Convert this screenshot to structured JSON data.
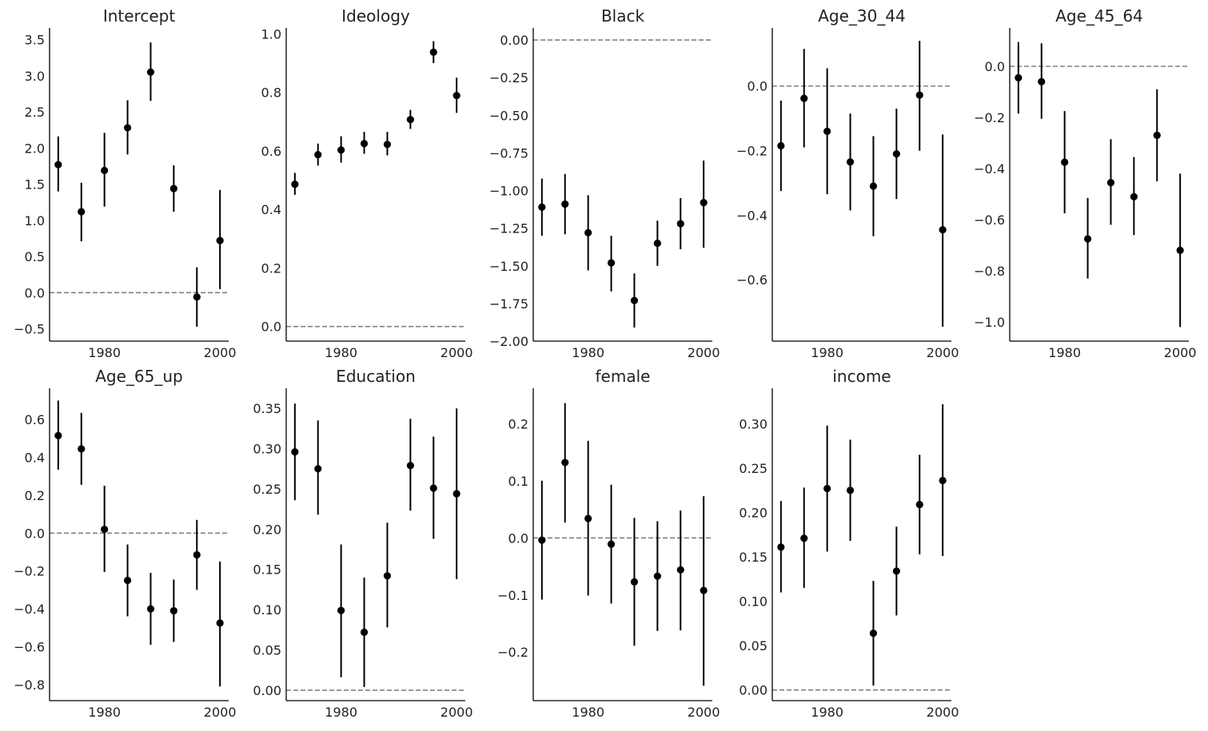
{
  "colors": {
    "marker": "#000000",
    "axis": "#000000",
    "reference_line": "#808080",
    "text": "#222222",
    "background": "#ffffff"
  },
  "chart_data": [
    {
      "type": "scatter",
      "title": "Intercept",
      "x": [
        1972,
        1976,
        1980,
        1984,
        1988,
        1992,
        1996,
        2000
      ],
      "mean": [
        1.77,
        1.12,
        1.69,
        2.28,
        3.05,
        1.44,
        -0.06,
        0.72
      ],
      "lower": [
        1.4,
        0.71,
        1.19,
        1.91,
        2.65,
        1.12,
        -0.47,
        0.05
      ],
      "upper": [
        2.16,
        1.52,
        2.21,
        2.66,
        3.46,
        1.76,
        0.35,
        1.42
      ],
      "reference_line": 0,
      "xlim": [
        1970.5,
        2001.5
      ],
      "ylim": [
        -0.67,
        3.66
      ],
      "xticks": [
        1980,
        2000
      ],
      "yticks": [
        -0.5,
        0.0,
        0.5,
        1.0,
        1.5,
        2.0,
        2.5,
        3.0,
        3.5
      ],
      "ytick_labels": [
        "−0.5",
        "0.0",
        "0.5",
        "1.0",
        "1.5",
        "2.0",
        "2.5",
        "3.0",
        "3.5"
      ]
    },
    {
      "type": "scatter",
      "title": "Ideology",
      "x": [
        1972,
        1976,
        1980,
        1984,
        1988,
        1992,
        1996,
        2000
      ],
      "mean": [
        0.486,
        0.587,
        0.603,
        0.625,
        0.622,
        0.707,
        0.937,
        0.789
      ],
      "lower": [
        0.45,
        0.55,
        0.56,
        0.59,
        0.585,
        0.675,
        0.9,
        0.73
      ],
      "upper": [
        0.525,
        0.625,
        0.65,
        0.665,
        0.665,
        0.74,
        0.975,
        0.85
      ],
      "reference_line": 0,
      "xlim": [
        1970.5,
        2001.5
      ],
      "ylim": [
        -0.05,
        1.02
      ],
      "xticks": [
        1980,
        2000
      ],
      "yticks": [
        0.0,
        0.2,
        0.4,
        0.6,
        0.8,
        1.0
      ],
      "ytick_labels": [
        "0.0",
        "0.2",
        "0.4",
        "0.6",
        "0.8",
        "1.0"
      ]
    },
    {
      "type": "scatter",
      "title": "Black",
      "x": [
        1972,
        1976,
        1980,
        1984,
        1988,
        1992,
        1996,
        2000
      ],
      "mean": [
        -1.11,
        -1.09,
        -1.28,
        -1.48,
        -1.73,
        -1.35,
        -1.22,
        -1.08
      ],
      "lower": [
        -1.3,
        -1.29,
        -1.53,
        -1.67,
        -1.91,
        -1.5,
        -1.39,
        -1.38
      ],
      "upper": [
        -0.92,
        -0.89,
        -1.03,
        -1.3,
        -1.55,
        -1.2,
        -1.05,
        -0.8
      ],
      "reference_line": 0,
      "xlim": [
        1970.5,
        2001.5
      ],
      "ylim": [
        -2.0,
        0.08
      ],
      "xticks": [
        1980,
        2000
      ],
      "yticks": [
        -2.0,
        -1.75,
        -1.5,
        -1.25,
        -1.0,
        -0.75,
        -0.5,
        -0.25,
        0.0
      ],
      "ytick_labels": [
        "−2.00",
        "−1.75",
        "−1.50",
        "−1.25",
        "−1.00",
        "−0.75",
        "−0.50",
        "−0.25",
        "0.00"
      ]
    },
    {
      "type": "scatter",
      "title": "Age_30_44",
      "x": [
        1972,
        1976,
        1980,
        1984,
        1988,
        1992,
        1996,
        2000
      ],
      "mean": [
        -0.185,
        -0.038,
        -0.14,
        -0.235,
        -0.31,
        -0.21,
        -0.028,
        -0.445
      ],
      "lower": [
        -0.325,
        -0.19,
        -0.335,
        -0.385,
        -0.465,
        -0.35,
        -0.2,
        -0.745
      ],
      "upper": [
        -0.045,
        0.115,
        0.055,
        -0.085,
        -0.155,
        -0.07,
        0.14,
        -0.15
      ],
      "reference_line": 0,
      "xlim": [
        1970.5,
        2001.5
      ],
      "ylim": [
        -0.79,
        0.18
      ],
      "xticks": [
        1980,
        2000
      ],
      "yticks": [
        -0.6,
        -0.4,
        -0.2,
        0.0
      ],
      "ytick_labels": [
        "−0.6",
        "−0.4",
        "−0.2",
        "0.0"
      ]
    },
    {
      "type": "scatter",
      "title": "Age_45_64",
      "x": [
        1972,
        1976,
        1980,
        1984,
        1988,
        1992,
        1996,
        2000
      ],
      "mean": [
        -0.045,
        -0.06,
        -0.375,
        -0.675,
        -0.455,
        -0.51,
        -0.27,
        -0.72
      ],
      "lower": [
        -0.185,
        -0.205,
        -0.575,
        -0.83,
        -0.62,
        -0.66,
        -0.45,
        -1.02
      ],
      "upper": [
        0.095,
        0.09,
        -0.175,
        -0.515,
        -0.285,
        -0.355,
        -0.09,
        -0.42
      ],
      "reference_line": 0,
      "xlim": [
        1970.5,
        2001.5
      ],
      "ylim": [
        -1.075,
        0.15
      ],
      "xticks": [
        1980,
        2000
      ],
      "yticks": [
        -1.0,
        -0.8,
        -0.6,
        -0.4,
        -0.2,
        0.0
      ],
      "ytick_labels": [
        "−1.0",
        "−0.8",
        "−0.6",
        "−0.4",
        "−0.2",
        "0.0"
      ]
    },
    {
      "type": "scatter",
      "title": "Age_65_up",
      "x": [
        1972,
        1976,
        1980,
        1984,
        1988,
        1992,
        1996,
        2000
      ],
      "mean": [
        0.515,
        0.445,
        0.02,
        -0.25,
        -0.4,
        -0.41,
        -0.115,
        -0.475
      ],
      "lower": [
        0.335,
        0.255,
        -0.205,
        -0.44,
        -0.59,
        -0.575,
        -0.3,
        -0.81
      ],
      "upper": [
        0.7,
        0.635,
        0.25,
        -0.06,
        -0.21,
        -0.245,
        0.07,
        -0.15
      ],
      "reference_line": 0,
      "xlim": [
        1970.5,
        2001.5
      ],
      "ylim": [
        -0.885,
        0.765
      ],
      "xticks": [
        1980,
        2000
      ],
      "yticks": [
        -0.8,
        -0.6,
        -0.4,
        -0.2,
        0.0,
        0.2,
        0.4,
        0.6
      ],
      "ytick_labels": [
        "−0.8",
        "−0.6",
        "−0.4",
        "−0.2",
        "0.0",
        "0.2",
        "0.4",
        "0.6"
      ]
    },
    {
      "type": "scatter",
      "title": "Education",
      "x": [
        1972,
        1976,
        1980,
        1984,
        1988,
        1992,
        1996,
        2000
      ],
      "mean": [
        0.296,
        0.275,
        0.099,
        0.072,
        0.142,
        0.279,
        0.251,
        0.244
      ],
      "lower": [
        0.236,
        0.218,
        0.016,
        0.004,
        0.078,
        0.223,
        0.188,
        0.138
      ],
      "upper": [
        0.356,
        0.335,
        0.181,
        0.14,
        0.208,
        0.337,
        0.315,
        0.35
      ],
      "reference_line": 0,
      "xlim": [
        1970.5,
        2001.5
      ],
      "ylim": [
        -0.013,
        0.375
      ],
      "xticks": [
        1980,
        2000
      ],
      "yticks": [
        0.0,
        0.05,
        0.1,
        0.15,
        0.2,
        0.25,
        0.3,
        0.35
      ],
      "ytick_labels": [
        "0.00",
        "0.05",
        "0.10",
        "0.15",
        "0.20",
        "0.25",
        "0.30",
        "0.35"
      ]
    },
    {
      "type": "scatter",
      "title": "female",
      "x": [
        1972,
        1976,
        1980,
        1984,
        1988,
        1992,
        1996,
        2000
      ],
      "mean": [
        -0.004,
        0.132,
        0.034,
        -0.011,
        -0.077,
        -0.067,
        -0.056,
        -0.092
      ],
      "lower": [
        -0.108,
        0.027,
        -0.101,
        -0.115,
        -0.189,
        -0.163,
        -0.162,
        -0.259
      ],
      "upper": [
        0.1,
        0.236,
        0.17,
        0.093,
        0.035,
        0.029,
        0.048,
        0.073
      ],
      "reference_line": 0,
      "xlim": [
        1970.5,
        2001.5
      ],
      "ylim": [
        -0.285,
        0.262
      ],
      "xticks": [
        1980,
        2000
      ],
      "yticks": [
        -0.2,
        -0.1,
        0.0,
        0.1,
        0.2
      ],
      "ytick_labels": [
        "−0.2",
        "−0.1",
        "0.0",
        "0.1",
        "0.2"
      ]
    },
    {
      "type": "scatter",
      "title": "income",
      "x": [
        1972,
        1976,
        1980,
        1984,
        1988,
        1992,
        1996,
        2000
      ],
      "mean": [
        0.161,
        0.171,
        0.227,
        0.225,
        0.064,
        0.134,
        0.209,
        0.236
      ],
      "lower": [
        0.11,
        0.115,
        0.156,
        0.168,
        0.005,
        0.084,
        0.153,
        0.151
      ],
      "upper": [
        0.213,
        0.228,
        0.298,
        0.282,
        0.123,
        0.184,
        0.265,
        0.322
      ],
      "reference_line": 0,
      "xlim": [
        1970.5,
        2001.5
      ],
      "ylim": [
        -0.012,
        0.34
      ],
      "xticks": [
        1980,
        2000
      ],
      "yticks": [
        0.0,
        0.05,
        0.1,
        0.15,
        0.2,
        0.25,
        0.3
      ],
      "ytick_labels": [
        "0.00",
        "0.05",
        "0.10",
        "0.15",
        "0.20",
        "0.25",
        "0.30"
      ]
    }
  ]
}
